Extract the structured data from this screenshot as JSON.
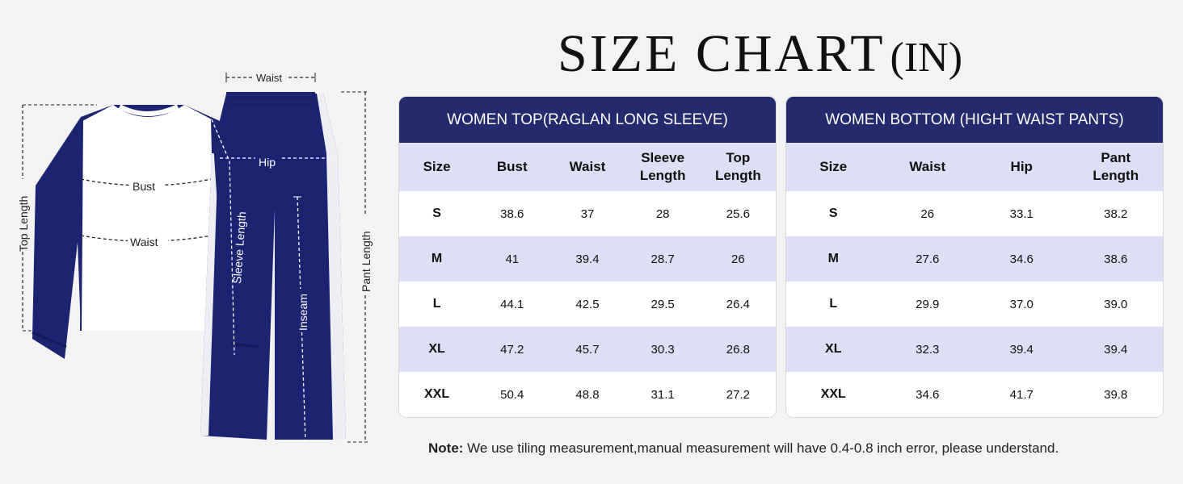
{
  "title": {
    "main": "SIZE CHART",
    "unit": "(IN)"
  },
  "labels": {
    "waist_top": "Waist",
    "top_length": "Top Length",
    "bust": "Bust",
    "waist": "Waist",
    "sleeve_length": "Sleeve Length",
    "hip": "Hip",
    "inseam": "Inseam",
    "pant_length": "Pant Length"
  },
  "colors": {
    "navy": "#232a6e",
    "garment_navy": "#1b2470",
    "header_bg": "#dcdff5"
  },
  "top_table": {
    "header": "WOMEN TOP(RAGLAN LONG SLEEVE)",
    "columns": [
      "Size",
      "Bust",
      "Waist",
      "Sleeve Length",
      "Top Length"
    ],
    "rows": [
      [
        "S",
        "38.6",
        "37",
        "28",
        "25.6"
      ],
      [
        "M",
        "41",
        "39.4",
        "28.7",
        "26"
      ],
      [
        "L",
        "44.1",
        "42.5",
        "29.5",
        "26.4"
      ],
      [
        "XL",
        "47.2",
        "45.7",
        "30.3",
        "26.8"
      ],
      [
        "XXL",
        "50.4",
        "48.8",
        "31.1",
        "27.2"
      ]
    ]
  },
  "bottom_table": {
    "header": "WOMEN BOTTOM (HIGHT WAIST PANTS)",
    "columns": [
      "Size",
      "Waist",
      "Hip",
      "Pant Length"
    ],
    "rows": [
      [
        "S",
        "26",
        "33.1",
        "38.2"
      ],
      [
        "M",
        "27.6",
        "34.6",
        "38.6"
      ],
      [
        "L",
        "29.9",
        "37.0",
        "39.0"
      ],
      [
        "XL",
        "32.3",
        "39.4",
        "39.4"
      ],
      [
        "XXL",
        "34.6",
        "41.7",
        "39.8"
      ]
    ]
  },
  "note": {
    "label": "Note:",
    "text": " We use tiling measurement,manual measurement will have 0.4-0.8 inch error, please understand."
  }
}
